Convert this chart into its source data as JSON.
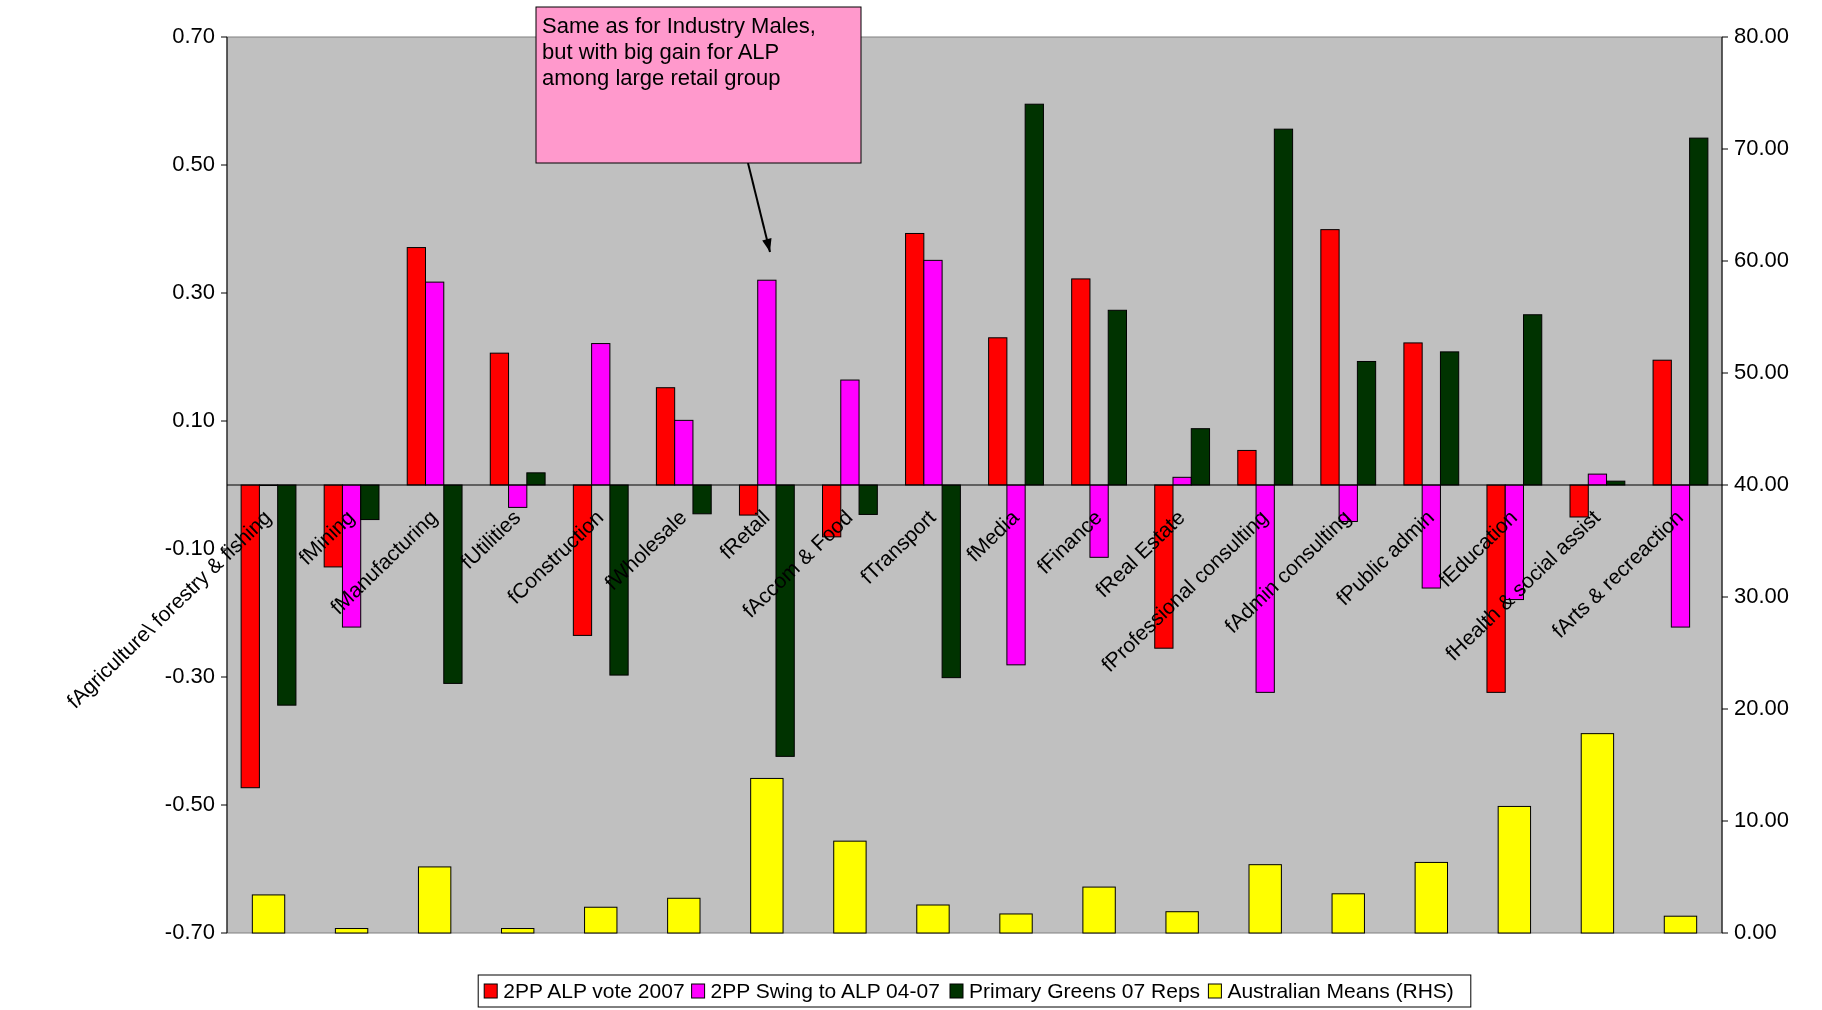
{
  "chart_data": {
    "type": "bar",
    "categories": [
      "fAgriculture\\ forestry & fishing",
      "fMining",
      "fManufacturing",
      "fUtilities",
      "fConstruction",
      "fWholesale",
      "fRetail",
      "fAccom & Food",
      "fTransport",
      "fMedia",
      "fFinance",
      "fReal Estate",
      "fProfessional consulting",
      "fAdmin consulting",
      "fPublic admin",
      "fEducation",
      "fHealth & social assist",
      "fArts & recreaction"
    ],
    "series": [
      {
        "name": "2PP ALP vote 2007",
        "color": "#ff0000",
        "values": [
          -0.473,
          -0.128,
          0.371,
          0.206,
          -0.235,
          0.152,
          -0.047,
          -0.081,
          0.393,
          0.23,
          0.322,
          -0.255,
          0.054,
          0.399,
          0.222,
          -0.324,
          -0.05,
          0.195
        ]
      },
      {
        "name": "2PP Swing to ALP 04-07",
        "color": "#ff00ff",
        "values": [
          0.0,
          -0.222,
          0.317,
          -0.035,
          0.221,
          0.101,
          0.32,
          0.164,
          0.351,
          -0.281,
          -0.113,
          0.012,
          -0.324,
          -0.057,
          -0.161,
          -0.179,
          0.017,
          -0.222
        ]
      },
      {
        "name": "Primary Greens 07 Reps",
        "color": "#003300",
        "values": [
          -0.344,
          -0.054,
          -0.31,
          0.019,
          -0.297,
          -0.045,
          -0.424,
          -0.046,
          -0.301,
          0.595,
          0.273,
          0.088,
          0.556,
          0.193,
          0.208,
          0.266,
          0.006,
          0.542
        ]
      },
      {
        "name": "Australian Means (RHS)",
        "color": "#ffff00",
        "axis": "y2",
        "values": [
          3.4,
          0.4,
          5.9,
          0.4,
          2.3,
          3.1,
          13.8,
          8.2,
          2.5,
          1.7,
          4.1,
          1.9,
          6.1,
          3.5,
          6.3,
          11.3,
          17.8,
          1.5
        ]
      }
    ],
    "ylim": [
      -0.7,
      0.7
    ],
    "yticks": [
      {
        "value": -0.7,
        "label": "-0.70"
      },
      {
        "value": -0.5,
        "label": "-0.50"
      },
      {
        "value": -0.3,
        "label": "-0.30"
      },
      {
        "value": -0.1,
        "label": "-0.10"
      },
      {
        "value": 0.1,
        "label": "0.10"
      },
      {
        "value": 0.3,
        "label": "0.30"
      },
      {
        "value": 0.5,
        "label": "0.50"
      },
      {
        "value": 0.7,
        "label": "0.70"
      }
    ],
    "y2lim": [
      0,
      80
    ],
    "y2ticks": [
      {
        "value": 0,
        "label": "0.00"
      },
      {
        "value": 10,
        "label": "10.00"
      },
      {
        "value": 20,
        "label": "20.00"
      },
      {
        "value": 30,
        "label": "30.00"
      },
      {
        "value": 40,
        "label": "40.00"
      },
      {
        "value": 50,
        "label": "50.00"
      },
      {
        "value": 60,
        "label": "60.00"
      },
      {
        "value": 70,
        "label": "70.00"
      },
      {
        "value": 80,
        "label": "80.00"
      }
    ],
    "annotations": [
      "Same as for Industry Males, but with big gain for ALP among large retail group"
    ],
    "legend": "bottom",
    "grid": false
  }
}
